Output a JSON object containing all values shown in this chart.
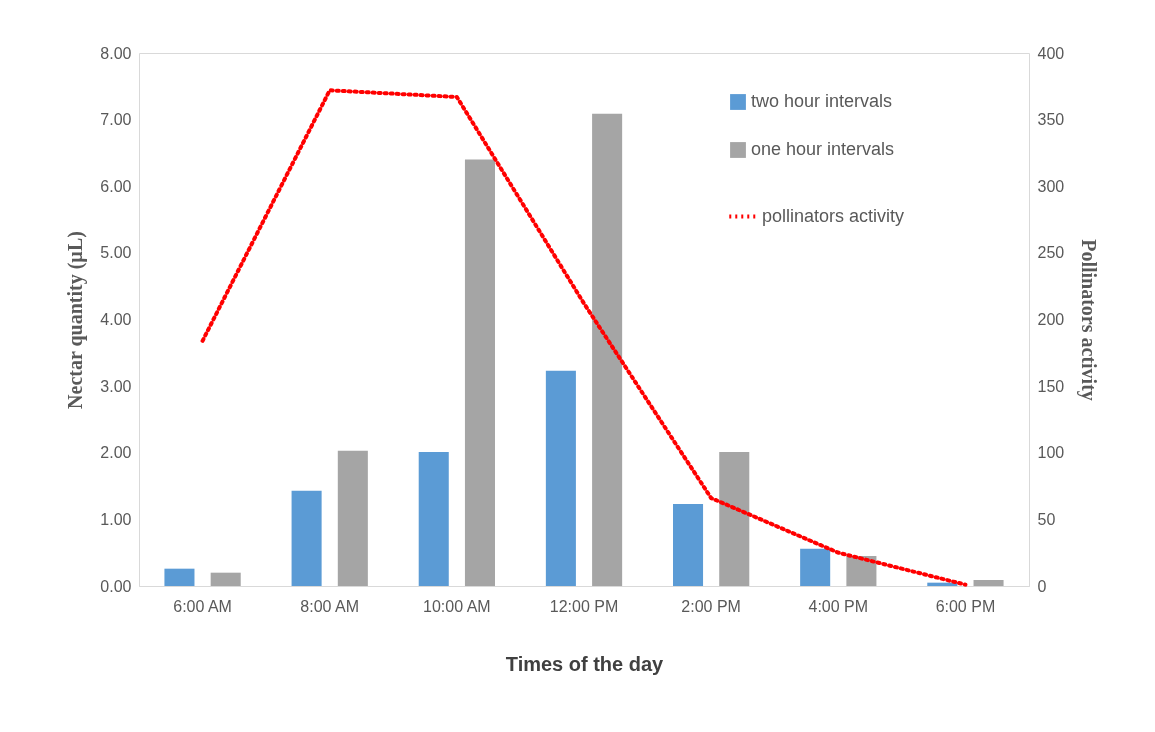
{
  "chart_data": {
    "type": "bar",
    "xlabel": "Times of the day",
    "ylabel": "Nectar quantity (µL)",
    "y2label": "Pollinators activity",
    "categories": [
      "6:00 AM",
      "8:00 AM",
      "10:00 AM",
      "12:00 PM",
      "2:00 PM",
      "4:00 PM",
      "6:00 PM"
    ],
    "series": [
      {
        "name": "two hour intervals",
        "color": "#5b9bd5",
        "values": [
          0.26,
          1.43,
          2.01,
          3.23,
          1.23,
          0.56,
          0.05
        ]
      },
      {
        "name": "one hour intervals",
        "color": "#a5a5a5",
        "values": [
          0.2,
          2.03,
          6.4,
          7.09,
          2.01,
          0.45,
          0.09
        ]
      },
      {
        "name": "pollinators activity",
        "type": "line",
        "axis": "y2",
        "color": "#ff0000",
        "line_style": "dotted",
        "values": [
          184,
          372,
          367,
          212,
          66,
          25,
          1
        ]
      }
    ],
    "ylim": [
      0,
      8
    ],
    "yticks": [
      {
        "value": 0,
        "label": "0.00"
      },
      {
        "value": 1,
        "label": "1.00"
      },
      {
        "value": 2,
        "label": "2.00"
      },
      {
        "value": 3,
        "label": "3.00"
      },
      {
        "value": 4,
        "label": "4.00"
      },
      {
        "value": 5,
        "label": "5.00"
      },
      {
        "value": 6,
        "label": "6.00"
      },
      {
        "value": 7,
        "label": "7.00"
      },
      {
        "value": 8,
        "label": "8.00"
      }
    ],
    "y2lim": [
      0,
      400
    ],
    "y2ticks": [
      0,
      50,
      100,
      150,
      200,
      250,
      300,
      350,
      400
    ],
    "legend": "top right"
  }
}
